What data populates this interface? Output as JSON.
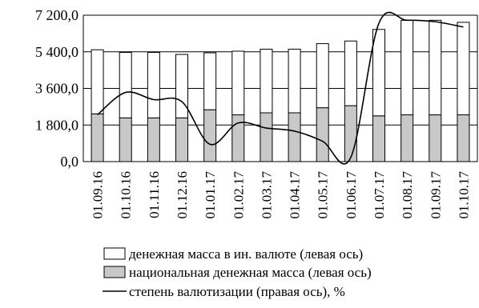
{
  "chart_data": {
    "type": "bar",
    "stacked": true,
    "categories": [
      "01.09.16",
      "01.10.16",
      "01.11.16",
      "01.12.16",
      "01.01.17",
      "01.02.17",
      "01.03.17",
      "01.04.17",
      "01.05.17",
      "01.06.17",
      "01.07.17",
      "01.08.17",
      "01.09.17",
      "01.10.17"
    ],
    "y_ticks": [
      "0,0",
      "1 800,0",
      "3 600,0",
      "5 400,0",
      "7 200,0"
    ],
    "ylim": [
      0,
      7200
    ],
    "grid": true,
    "legend_position": "bottom",
    "series": [
      {
        "name": "национальная денежная масса (левая ось)",
        "kind": "bar",
        "fill": "#c8c8c8",
        "values": [
          2350,
          2150,
          2150,
          2150,
          2550,
          2300,
          2400,
          2400,
          2650,
          2750,
          2250,
          2300,
          2300,
          2300
        ]
      },
      {
        "name": "денежная масса в ин. валюте (левая ось)",
        "kind": "bar",
        "fill": "#ffffff",
        "values": [
          3150,
          3220,
          3220,
          3120,
          2800,
          3130,
          3130,
          3130,
          3150,
          3180,
          4250,
          4650,
          4650,
          4550
        ]
      },
      {
        "name": "степень валютизации (правая ось), %",
        "kind": "line",
        "stroke": "#000000",
        "values": [
          2300,
          3400,
          3050,
          2950,
          850,
          1900,
          1650,
          1500,
          1000,
          200,
          6800,
          6950,
          6880,
          6620
        ]
      }
    ]
  }
}
